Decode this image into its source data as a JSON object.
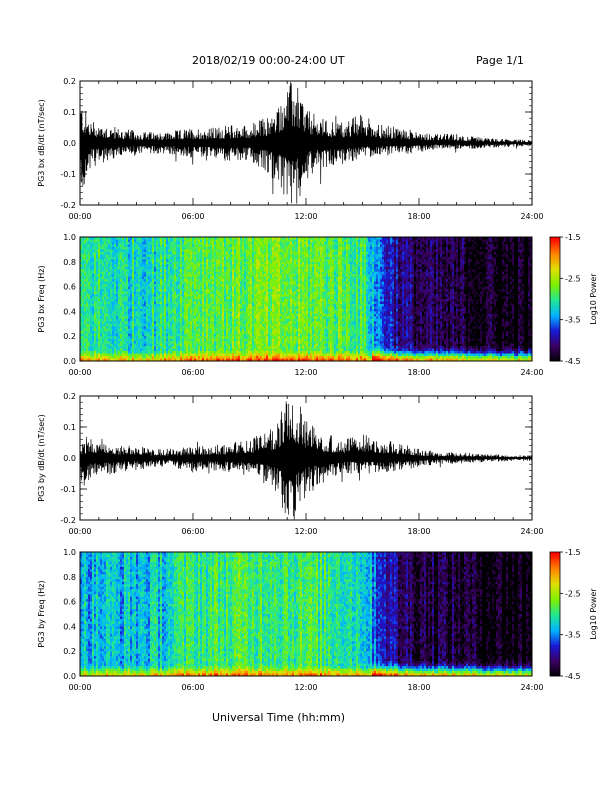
{
  "page": {
    "date_range": "2018/02/19  00:00-24:00 UT",
    "page_label": "Page 1/1",
    "xlabel": "Universal Time (hh:mm)"
  },
  "colors": {
    "trace": "#000000",
    "colormap": [
      "#000000",
      "#3a0060",
      "#1a18d8",
      "#00b4ff",
      "#22e890",
      "#80f000",
      "#e0e000",
      "#ff8000",
      "#ff0000"
    ]
  },
  "icons": {
    "colorbar": "colorbar-gradient"
  },
  "chart_data": [
    {
      "type": "line",
      "ylabel": "PG3 bx dB/dt (nT/sec)",
      "xlim": [
        "00:00",
        "24:00"
      ],
      "ylim": [
        -0.2,
        0.2
      ],
      "x_ticks": [
        "00:00",
        "06:00",
        "12:00",
        "18:00",
        "24:00"
      ],
      "y_ticks": [
        "0.2",
        "0.1",
        "0.0",
        "-0.1",
        "-0.2"
      ],
      "envelope": {
        "x_hours": [
          0,
          0.5,
          1,
          2,
          3,
          4,
          5,
          6,
          7,
          8,
          9,
          10,
          10.5,
          11,
          11.5,
          12,
          12.5,
          13,
          14,
          15,
          16,
          17,
          18,
          19,
          20,
          21,
          22,
          23,
          24
        ],
        "upper": [
          0.15,
          0.08,
          0.07,
          0.05,
          0.04,
          0.035,
          0.04,
          0.05,
          0.05,
          0.06,
          0.06,
          0.09,
          0.12,
          0.2,
          0.2,
          0.12,
          0.09,
          0.08,
          0.07,
          0.1,
          0.06,
          0.05,
          0.04,
          0.03,
          0.03,
          0.02,
          0.015,
          0.012,
          0.01
        ],
        "lower": [
          -0.2,
          -0.08,
          -0.07,
          -0.05,
          -0.04,
          -0.035,
          -0.04,
          -0.05,
          -0.05,
          -0.06,
          -0.06,
          -0.1,
          -0.14,
          -0.2,
          -0.2,
          -0.12,
          -0.09,
          -0.08,
          -0.07,
          -0.05,
          -0.04,
          -0.04,
          -0.03,
          -0.02,
          -0.02,
          -0.018,
          -0.015,
          -0.012,
          -0.01
        ]
      }
    },
    {
      "type": "heatmap",
      "ylabel": "PG3 bx Freq (Hz)",
      "xlim": [
        "00:00",
        "24:00"
      ],
      "ylim": [
        0.0,
        1.0
      ],
      "x_ticks": [
        "00:00",
        "06:00",
        "12:00",
        "18:00",
        "24:00"
      ],
      "y_ticks": [
        "1.0",
        "0.8",
        "0.6",
        "0.4",
        "0.2",
        "0.0"
      ],
      "colorbar": {
        "label": "Log10 Power",
        "range": [
          -4.5,
          -1.5
        ],
        "ticks": [
          "-1.5",
          "-2.5",
          "-3.5",
          "-4.5"
        ]
      },
      "log_power_profile": {
        "x_hours": [
          0,
          2,
          4,
          6,
          8,
          10,
          12,
          14,
          15,
          16,
          17,
          18,
          20,
          22,
          24
        ],
        "mean": [
          -3.0,
          -3.1,
          -3.1,
          -2.75,
          -2.75,
          -2.75,
          -2.75,
          -2.8,
          -2.9,
          -3.6,
          -4.0,
          -4.2,
          -4.3,
          -4.4,
          -4.5
        ]
      }
    },
    {
      "type": "line",
      "ylabel": "PG3 by dB/dt (nT/sec)",
      "xlim": [
        "00:00",
        "24:00"
      ],
      "ylim": [
        -0.2,
        0.2
      ],
      "x_ticks": [
        "00:00",
        "06:00",
        "12:00",
        "18:00",
        "24:00"
      ],
      "y_ticks": [
        "0.2",
        "0.1",
        "0.0",
        "-0.1",
        "-0.2"
      ],
      "envelope": {
        "x_hours": [
          0,
          0.5,
          1,
          2,
          3,
          4,
          5,
          6,
          7,
          8,
          9,
          10,
          10.5,
          11,
          11.5,
          12,
          12.5,
          13,
          14,
          15,
          16,
          17,
          18,
          19,
          20,
          21,
          22,
          23,
          24
        ],
        "upper": [
          0.05,
          0.06,
          0.07,
          0.04,
          0.04,
          0.03,
          0.03,
          0.04,
          0.04,
          0.05,
          0.06,
          0.09,
          0.12,
          0.2,
          0.2,
          0.12,
          0.1,
          0.08,
          0.06,
          0.08,
          0.06,
          0.05,
          0.03,
          0.02,
          0.02,
          0.015,
          0.012,
          0.01,
          0.01
        ],
        "lower": [
          -0.12,
          -0.07,
          -0.06,
          -0.05,
          -0.04,
          -0.03,
          -0.03,
          -0.05,
          -0.04,
          -0.05,
          -0.06,
          -0.09,
          -0.12,
          -0.2,
          -0.2,
          -0.12,
          -0.1,
          -0.08,
          -0.05,
          -0.05,
          -0.05,
          -0.04,
          -0.03,
          -0.02,
          -0.02,
          -0.015,
          -0.012,
          -0.01,
          -0.01
        ]
      }
    },
    {
      "type": "heatmap",
      "ylabel": "PG3 by Freq (Hz)",
      "xlim": [
        "00:00",
        "24:00"
      ],
      "ylim": [
        0.0,
        1.0
      ],
      "x_ticks": [
        "00:00",
        "06:00",
        "12:00",
        "18:00",
        "24:00"
      ],
      "y_ticks": [
        "1.0",
        "0.8",
        "0.6",
        "0.4",
        "0.2",
        "0.0"
      ],
      "colorbar": {
        "label": "Log10 Power",
        "range": [
          -4.5,
          -1.5
        ],
        "ticks": [
          "-1.5",
          "-2.5",
          "-3.5",
          "-4.5"
        ]
      },
      "log_power_profile": {
        "x_hours": [
          0,
          2,
          4,
          6,
          8,
          10,
          12,
          14,
          15,
          16,
          17,
          18,
          20,
          22,
          24
        ],
        "mean": [
          -3.3,
          -3.3,
          -3.25,
          -2.95,
          -2.9,
          -2.85,
          -2.9,
          -3.0,
          -3.1,
          -3.7,
          -4.1,
          -4.2,
          -4.3,
          -4.4,
          -4.5
        ]
      }
    }
  ]
}
